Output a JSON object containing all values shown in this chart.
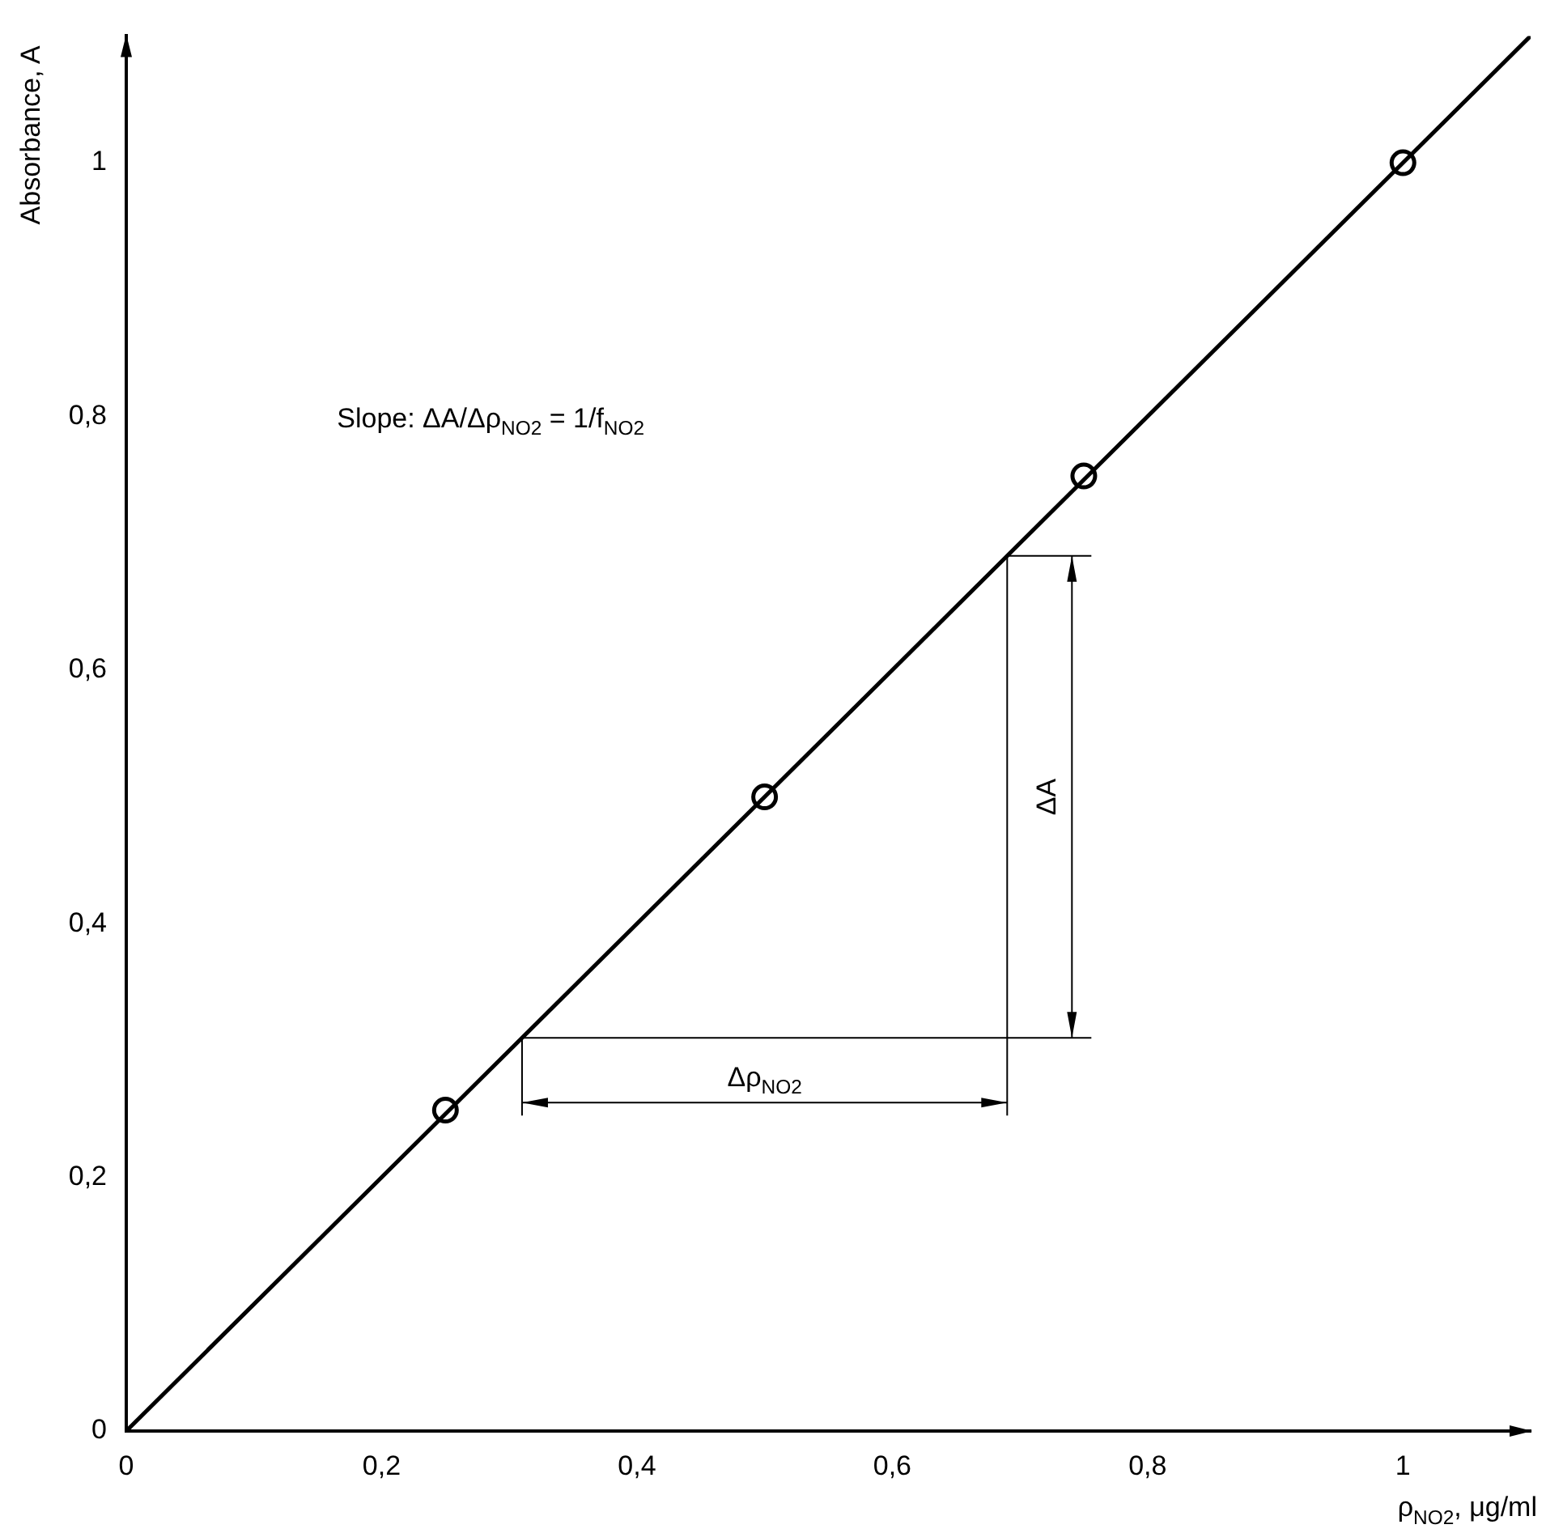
{
  "chart_data": {
    "type": "scatter",
    "xlabel": "ρ$_{NO2}$, μg/ml",
    "ylabel": "Absorbance, A",
    "series": [
      {
        "type": "line",
        "color": "#000000",
        "x": [
          0,
          1.1
        ],
        "values": [
          0,
          1.1
        ],
        "marker": "none"
      },
      {
        "color": "#000000",
        "x": [
          0.25,
          0.5,
          0.75,
          1
        ],
        "values": [
          0.253,
          0.5,
          0.753,
          1
        ],
        "marker": "circle"
      },
      {
        "type": "line",
        "color": "#000000",
        "x": [
          0.31,
          0.69,
          0.69
        ],
        "values": [
          0.31,
          0.31,
          0.69
        ],
        "marker": "none"
      }
    ],
    "xlim": [
      0,
      1.1
    ],
    "ylim": [
      0,
      1.1
    ],
    "xticks": [
      0,
      {
        "value": 0.2,
        "label": "0,2"
      },
      {
        "value": 0.4,
        "label": "0,4"
      },
      {
        "value": 0.6,
        "label": "0,6"
      },
      {
        "value": 0.8,
        "label": "0,8"
      },
      1
    ],
    "yticks": [
      0,
      {
        "value": 0.2,
        "label": "0,2"
      },
      {
        "value": 0.4,
        "label": "0,4"
      },
      {
        "value": 0.6,
        "label": "0,6"
      },
      {
        "value": 0.8,
        "label": "0,8"
      },
      1
    ],
    "grid": false,
    "legend": false,
    "annotations": [
      "Slope: ΔA/Δρ$_{NO2}$ = 1/f$_{NO2}$",
      "Δρ$_{NO2}$",
      "ΔA"
    ]
  }
}
